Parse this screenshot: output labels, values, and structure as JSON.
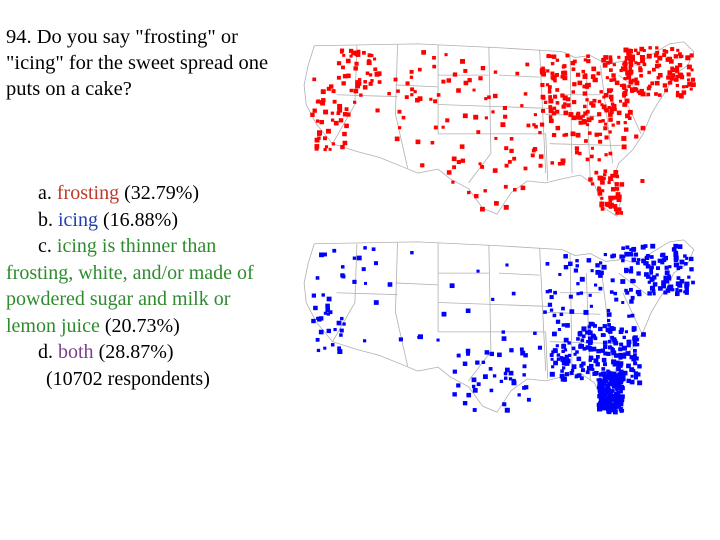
{
  "question": {
    "number": "94.",
    "text": "Do you say \"frosting\" or \"icing\" for the sweet spread one puts on a cake?"
  },
  "options": [
    {
      "letter": "a.",
      "term": "frosting",
      "percent": "(32.79%)",
      "color": "#c0392b"
    },
    {
      "letter": "b.",
      "term": "icing",
      "percent": "(16.88%)",
      "color": "#1f3fae"
    },
    {
      "letter": "c.",
      "term": "icing is thinner than frosting, white, and/or made of powdered sugar and milk or lemon juice",
      "percent": "(20.73%)",
      "color": "#2e8b2e"
    },
    {
      "letter": "d.",
      "term": "both",
      "percent": "(28.87%)",
      "color": "#7b3f8c"
    }
  ],
  "respondents": "(10702 respondents)",
  "maps": [
    {
      "answer": "frosting",
      "dot_color": "#ff0000"
    },
    {
      "answer": "icing",
      "dot_color": "#0000ff"
    }
  ]
}
